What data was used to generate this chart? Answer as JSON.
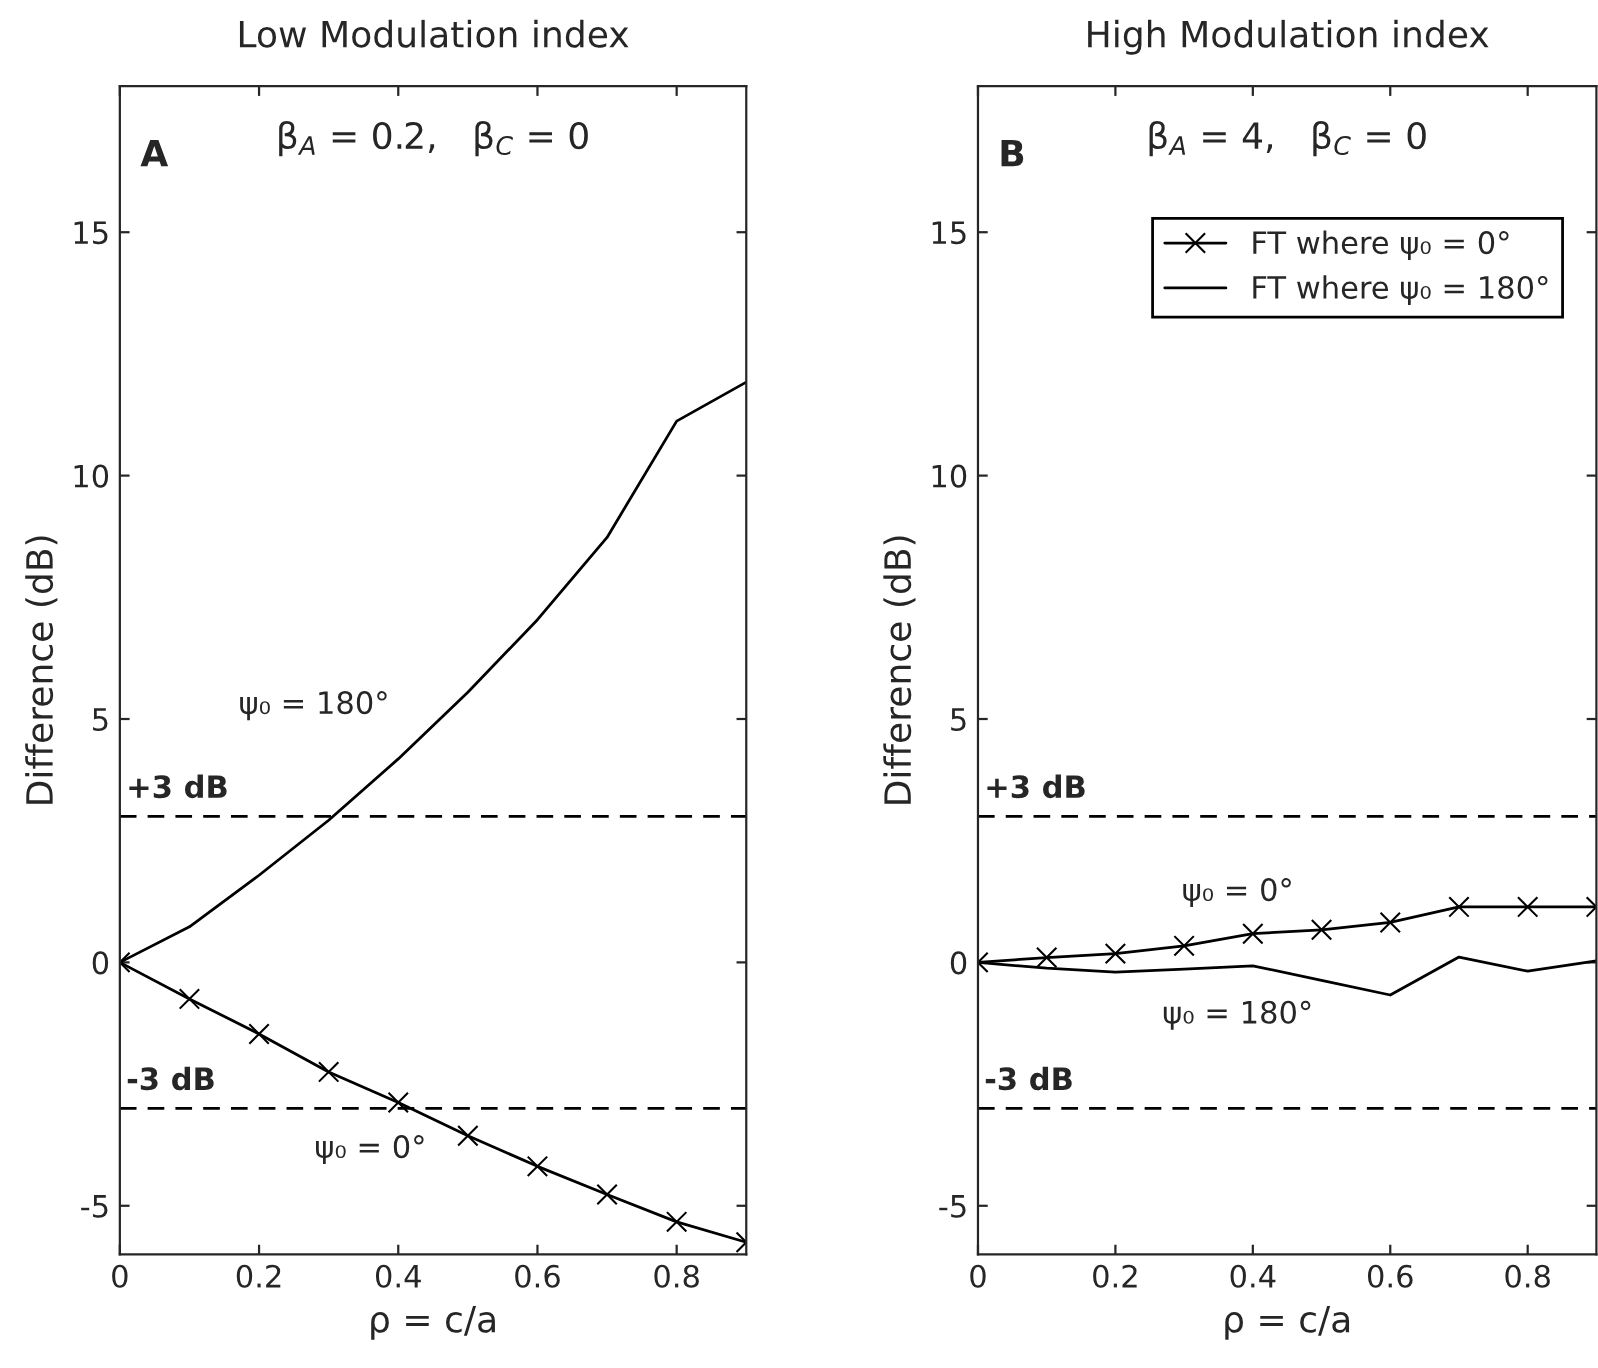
{
  "chart_data": [
    {
      "type": "line",
      "title": "Low Modulation index",
      "xlabel": "ρ = c/a",
      "ylabel": "Difference (dB)",
      "x": [
        0,
        0.1,
        0.2,
        0.3,
        0.4,
        0.5,
        0.6,
        0.7,
        0.8,
        0.9
      ],
      "series": [
        {
          "color": "#000000",
          "marker": "cross",
          "values": [
            0,
            -0.75,
            -1.47,
            -2.25,
            -2.88,
            -3.56,
            -4.19,
            -4.77,
            -5.33,
            -5.75
          ]
        },
        {
          "color": "#000000",
          "marker": "none",
          "values": [
            0,
            0.73,
            1.79,
            2.92,
            4.18,
            5.55,
            7.04,
            8.73,
            11.12,
            11.92
          ]
        }
      ],
      "xlim": [
        0,
        0.9
      ],
      "xticks": [
        0,
        0.2,
        0.4,
        0.6,
        0.8
      ],
      "ylim": [
        -6,
        18
      ],
      "yticks": [
        -5,
        0,
        5,
        10,
        15
      ],
      "ref_lines": [
        {
          "axis": "y",
          "value": 3,
          "label": "+3 dB",
          "color": "#000000",
          "line_style": "dashed"
        },
        {
          "axis": "y",
          "value": -3,
          "label": "-3 dB",
          "color": "#000000",
          "line_style": "dashed"
        }
      ],
      "annotations": [
        "A",
        "β$_{A}$ = 0.2,   β$_{C}$ = 0",
        "ψ₀ = 180°",
        "ψ₀ = 0°"
      ],
      "line_style": "solid",
      "grid": false,
      "legend": false
    },
    {
      "type": "line",
      "title": "High Modulation index",
      "xlabel": "ρ = c/a",
      "ylabel": "Difference (dB)",
      "x": [
        0,
        0.1,
        0.2,
        0.3,
        0.4,
        0.5,
        0.6,
        0.7,
        0.8,
        0.9
      ],
      "series": [
        {
          "name": "FT where ψ₀ = 0°",
          "color": "#000000",
          "marker": "cross",
          "values": [
            0,
            0.1,
            0.18,
            0.34,
            0.59,
            0.67,
            0.82,
            1.14,
            1.14,
            1.14
          ]
        },
        {
          "name": "FT where ψ₀ = 180°",
          "color": "#000000",
          "marker": "none",
          "values": [
            0,
            -0.12,
            -0.2,
            -0.14,
            -0.07,
            -0.37,
            -0.67,
            0.11,
            -0.18,
            0.03
          ]
        }
      ],
      "xlim": [
        0,
        0.9
      ],
      "xticks": [
        0,
        0.2,
        0.4,
        0.6,
        0.8
      ],
      "ylim": [
        -6,
        18
      ],
      "yticks": [
        -5,
        0,
        5,
        10,
        15
      ],
      "ref_lines": [
        {
          "axis": "y",
          "value": 3,
          "label": "+3 dB",
          "color": "#000000",
          "line_style": "dashed"
        },
        {
          "axis": "y",
          "value": -3,
          "label": "-3 dB",
          "color": "#000000",
          "line_style": "dashed"
        }
      ],
      "annotations": [
        "B",
        "β$_{A}$ = 4,   β$_{C}$ = 0",
        "ψ₀ = 0°",
        "ψ₀ = 180°"
      ],
      "line_style": "solid",
      "grid": false,
      "legend": "top right"
    }
  ]
}
